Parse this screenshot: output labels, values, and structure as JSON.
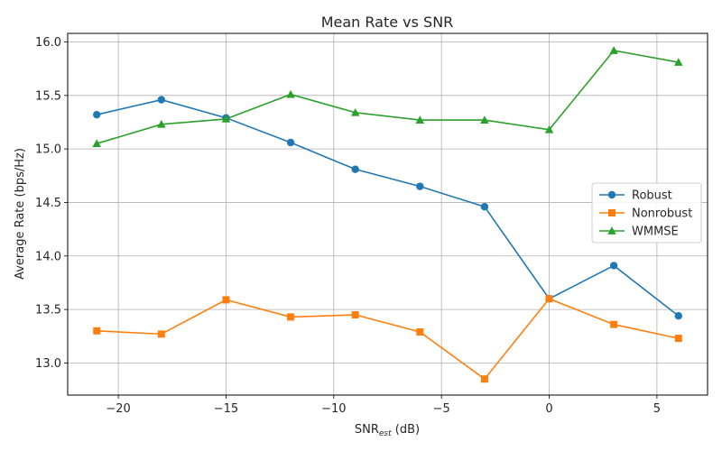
{
  "chart_data": {
    "type": "line",
    "title": "Mean Rate vs SNR",
    "xlabel": {
      "main": "SNR",
      "sub": "est",
      "suffix": " (dB)"
    },
    "ylabel": "Average Rate (bps/Hz)",
    "xlim": [
      -22.35,
      7.35
    ],
    "ylim": [
      12.7,
      16.08
    ],
    "xticks": [
      -20,
      -15,
      -10,
      -5,
      0,
      5
    ],
    "xtick_labels": [
      "−20",
      "−15",
      "−10",
      "−5",
      "0",
      "5"
    ],
    "yticks": [
      13.0,
      13.5,
      14.0,
      14.5,
      15.0,
      15.5,
      16.0
    ],
    "ytick_labels": [
      "13.0",
      "13.5",
      "14.0",
      "14.5",
      "15.0",
      "15.5",
      "16.0"
    ],
    "grid": true,
    "legend_position": "center-right",
    "x": [
      -21,
      -18,
      -15,
      -12,
      -9,
      -6,
      -3,
      0,
      3,
      6
    ],
    "series": [
      {
        "name": "Robust",
        "color": "#1f77b4",
        "marker": "circle",
        "values": [
          15.32,
          15.46,
          15.29,
          15.06,
          14.81,
          14.65,
          14.46,
          13.6,
          13.91,
          13.44
        ]
      },
      {
        "name": "Nonrobust",
        "color": "#ff7f0e",
        "marker": "square",
        "values": [
          13.3,
          13.27,
          13.59,
          13.43,
          13.45,
          13.29,
          12.85,
          13.6,
          13.36,
          13.23
        ]
      },
      {
        "name": "WMMSE",
        "color": "#2ca02c",
        "marker": "triangle",
        "values": [
          15.05,
          15.23,
          15.28,
          15.51,
          15.34,
          15.27,
          15.27,
          15.18,
          15.92,
          15.81
        ]
      }
    ]
  }
}
